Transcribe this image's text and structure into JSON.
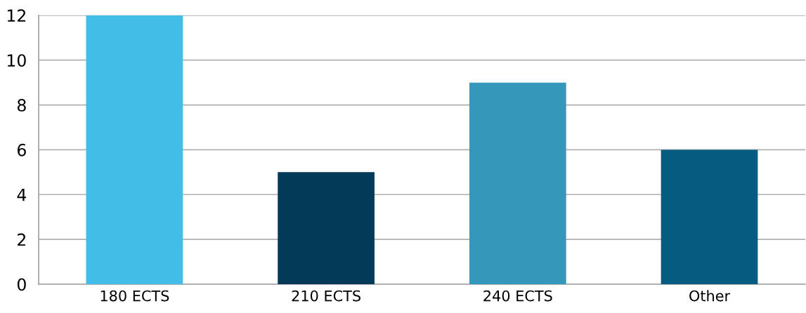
{
  "chart_data": {
    "type": "bar",
    "categories": [
      "180 ECTS",
      "210 ECTS",
      "240 ECTS",
      "Other"
    ],
    "values": [
      12,
      5,
      9,
      6
    ],
    "colors": [
      "#41bde8",
      "#033a57",
      "#3598bb",
      "#055c80"
    ],
    "ylim": [
      0,
      12
    ],
    "yticks": [
      0,
      2,
      4,
      6,
      8,
      10,
      12
    ],
    "grid": "y",
    "legend": false
  }
}
